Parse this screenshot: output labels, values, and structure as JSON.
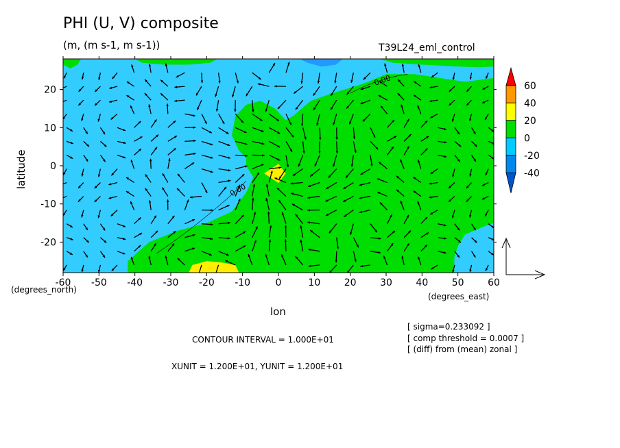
{
  "header": {
    "title": "PHI (U, V) composite",
    "units": "(m, (m s-1, m s-1))",
    "run": "T39L24_eml_control"
  },
  "footer": {
    "contour_interval": "CONTOUR INTERVAL = 1.000E+01",
    "vector_units": "XUNIT = 1.200E+01, YUNIT = 1.200E+01",
    "notes": [
      "[ sigma=0.233092 ]",
      "[ comp threshold = 0.0007 ]",
      "[ (diff) from (mean) zonal ]"
    ]
  },
  "chart_data": {
    "type": "heatmap",
    "title": "PHI (U, V) composite",
    "subtitle": "(m, (m s-1, m s-1))",
    "xlabel": "lon",
    "ylabel": "latitude",
    "x_unit_label": "(degrees_east)",
    "x_min_unit_label": "(degrees_north)",
    "xlim": [
      -60,
      60
    ],
    "ylim": [
      -28,
      28
    ],
    "x_ticks": [
      -60,
      -50,
      -40,
      -30,
      -20,
      -10,
      0,
      10,
      20,
      30,
      40,
      50,
      60
    ],
    "y_ticks": [
      20,
      10,
      0,
      -10,
      -20
    ],
    "contour_labels": [
      "0.00",
      "0.00"
    ],
    "colorbar": {
      "levels": [
        60,
        40,
        20,
        0,
        -20,
        -40
      ],
      "colors": [
        "#ff0000",
        "#ff9900",
        "#ffff00",
        "#00dd00",
        "#00ccff",
        "#0088ee",
        "#0055cc"
      ]
    },
    "colors": {
      "positive_low": "#00dd00",
      "negative_low": "#33ccff",
      "positive_mid": "#ffee00",
      "negative_mid": "#2299ff"
    },
    "vector_field": "converging wind vectors around a phi maximum near lon 0, lat -2"
  }
}
